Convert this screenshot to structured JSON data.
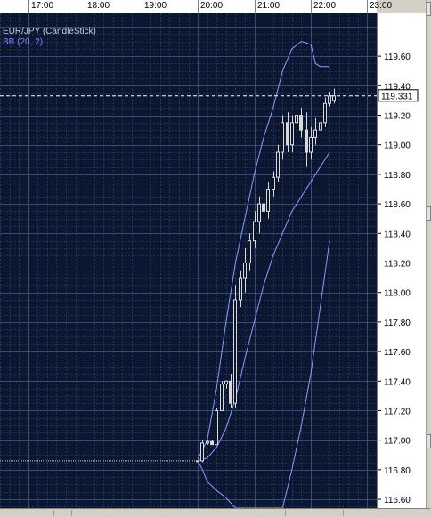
{
  "chart_data": {
    "type": "candlestick",
    "title": "EUR/JPY (CandleStick)",
    "indicator": "BB (20, 2)",
    "x_ticks": [
      "17:00",
      "18:00",
      "19:00",
      "20:00",
      "21:00",
      "22:00",
      "23:00"
    ],
    "y_ticks": [
      "116.60",
      "116.80",
      "117.00",
      "117.20",
      "117.40",
      "117.60",
      "117.80",
      "118.00",
      "118.20",
      "118.40",
      "118.60",
      "118.80",
      "119.00",
      "119.20",
      "119.40",
      "119.60"
    ],
    "ylim": [
      116.54,
      119.89
    ],
    "xlim": [
      "16:30",
      "23:10"
    ],
    "current_price": 119.331,
    "current_price_label": "119.331",
    "flat_price": 116.86,
    "grid": true,
    "candles": [
      {
        "t": "20:00",
        "o": 116.86,
        "h": 116.86,
        "l": 116.86,
        "c": 116.86
      },
      {
        "t": "20:05",
        "o": 116.86,
        "h": 117.0,
        "l": 116.85,
        "c": 116.98
      },
      {
        "t": "20:10",
        "o": 116.98,
        "h": 117.0,
        "l": 116.97,
        "c": 116.99
      },
      {
        "t": "20:15",
        "o": 116.99,
        "h": 117.0,
        "l": 116.97,
        "c": 116.97
      },
      {
        "t": "20:20",
        "o": 116.97,
        "h": 117.22,
        "l": 116.97,
        "c": 117.2
      },
      {
        "t": "20:25",
        "o": 117.2,
        "h": 117.4,
        "l": 117.2,
        "c": 117.38
      },
      {
        "t": "20:30",
        "o": 117.38,
        "h": 117.4,
        "l": 117.35,
        "c": 117.4
      },
      {
        "t": "20:35",
        "o": 117.4,
        "h": 117.45,
        "l": 117.22,
        "c": 117.25
      },
      {
        "t": "20:40",
        "o": 117.25,
        "h": 118.05,
        "l": 117.22,
        "c": 117.95
      },
      {
        "t": "20:45",
        "o": 117.95,
        "h": 118.15,
        "l": 117.9,
        "c": 118.1
      },
      {
        "t": "20:50",
        "o": 118.1,
        "h": 118.3,
        "l": 118.0,
        "c": 118.2
      },
      {
        "t": "20:55",
        "o": 118.2,
        "h": 118.4,
        "l": 118.15,
        "c": 118.35
      },
      {
        "t": "21:00",
        "o": 118.35,
        "h": 118.55,
        "l": 118.3,
        "c": 118.48
      },
      {
        "t": "21:05",
        "o": 118.48,
        "h": 118.65,
        "l": 118.4,
        "c": 118.6
      },
      {
        "t": "21:10",
        "o": 118.6,
        "h": 118.72,
        "l": 118.45,
        "c": 118.55
      },
      {
        "t": "21:15",
        "o": 118.55,
        "h": 118.75,
        "l": 118.5,
        "c": 118.7
      },
      {
        "t": "21:20",
        "o": 118.7,
        "h": 118.82,
        "l": 118.65,
        "c": 118.78
      },
      {
        "t": "21:25",
        "o": 118.78,
        "h": 119.0,
        "l": 118.75,
        "c": 118.95
      },
      {
        "t": "21:30",
        "o": 118.95,
        "h": 119.2,
        "l": 118.9,
        "c": 119.15
      },
      {
        "t": "21:35",
        "o": 119.15,
        "h": 119.22,
        "l": 118.95,
        "c": 119.0
      },
      {
        "t": "21:40",
        "o": 119.0,
        "h": 119.2,
        "l": 118.95,
        "c": 119.15
      },
      {
        "t": "21:45",
        "o": 119.15,
        "h": 119.25,
        "l": 119.1,
        "c": 119.2
      },
      {
        "t": "21:50",
        "o": 119.2,
        "h": 119.25,
        "l": 119.05,
        "c": 119.1
      },
      {
        "t": "21:55",
        "o": 119.1,
        "h": 119.22,
        "l": 118.85,
        "c": 118.95
      },
      {
        "t": "22:00",
        "o": 118.95,
        "h": 119.12,
        "l": 118.9,
        "c": 119.05
      },
      {
        "t": "22:05",
        "o": 119.05,
        "h": 119.18,
        "l": 119.0,
        "c": 119.1
      },
      {
        "t": "22:10",
        "o": 119.1,
        "h": 119.22,
        "l": 119.05,
        "c": 119.15
      },
      {
        "t": "22:15",
        "o": 119.15,
        "h": 119.32,
        "l": 119.12,
        "c": 119.28
      },
      {
        "t": "22:20",
        "o": 119.28,
        "h": 119.36,
        "l": 119.26,
        "c": 119.33
      },
      {
        "t": "22:25",
        "o": 119.3,
        "h": 119.38,
        "l": 119.28,
        "c": 119.331
      }
    ],
    "bb_upper": [
      [
        "20:00",
        116.87
      ],
      [
        "20:10",
        117.0
      ],
      [
        "20:20",
        117.35
      ],
      [
        "20:30",
        117.8
      ],
      [
        "20:40",
        118.2
      ],
      [
        "20:50",
        118.5
      ],
      [
        "21:00",
        118.8
      ],
      [
        "21:10",
        119.05
      ],
      [
        "21:20",
        119.25
      ],
      [
        "21:30",
        119.5
      ],
      [
        "21:40",
        119.65
      ],
      [
        "21:50",
        119.7
      ],
      [
        "22:00",
        119.68
      ],
      [
        "22:05",
        119.55
      ],
      [
        "22:10",
        119.53
      ],
      [
        "22:20",
        119.53
      ]
    ],
    "bb_middle": [
      [
        "20:00",
        116.86
      ],
      [
        "20:10",
        116.88
      ],
      [
        "20:20",
        116.95
      ],
      [
        "20:30",
        117.08
      ],
      [
        "20:40",
        117.28
      ],
      [
        "20:50",
        117.55
      ],
      [
        "21:00",
        117.8
      ],
      [
        "21:10",
        118.05
      ],
      [
        "21:20",
        118.25
      ],
      [
        "21:30",
        118.4
      ],
      [
        "21:40",
        118.55
      ],
      [
        "21:50",
        118.65
      ],
      [
        "22:00",
        118.75
      ],
      [
        "22:10",
        118.85
      ],
      [
        "22:20",
        118.95
      ]
    ],
    "bb_lower": [
      [
        "20:00",
        116.86
      ],
      [
        "20:05",
        116.8
      ],
      [
        "20:10",
        116.72
      ],
      [
        "20:20",
        116.66
      ],
      [
        "20:30",
        116.61
      ],
      [
        "20:40",
        116.54
      ],
      [
        "21:30",
        116.54
      ],
      [
        "21:40",
        116.8
      ],
      [
        "21:50",
        117.1
      ],
      [
        "22:00",
        117.45
      ],
      [
        "22:10",
        117.9
      ],
      [
        "22:20",
        118.35
      ]
    ],
    "colors": {
      "background": "#0b1631",
      "grid": "#3a4b73",
      "candle": "#d8d8d8",
      "bollinger": "#8a9cff",
      "price_line": "#ffffff"
    }
  }
}
